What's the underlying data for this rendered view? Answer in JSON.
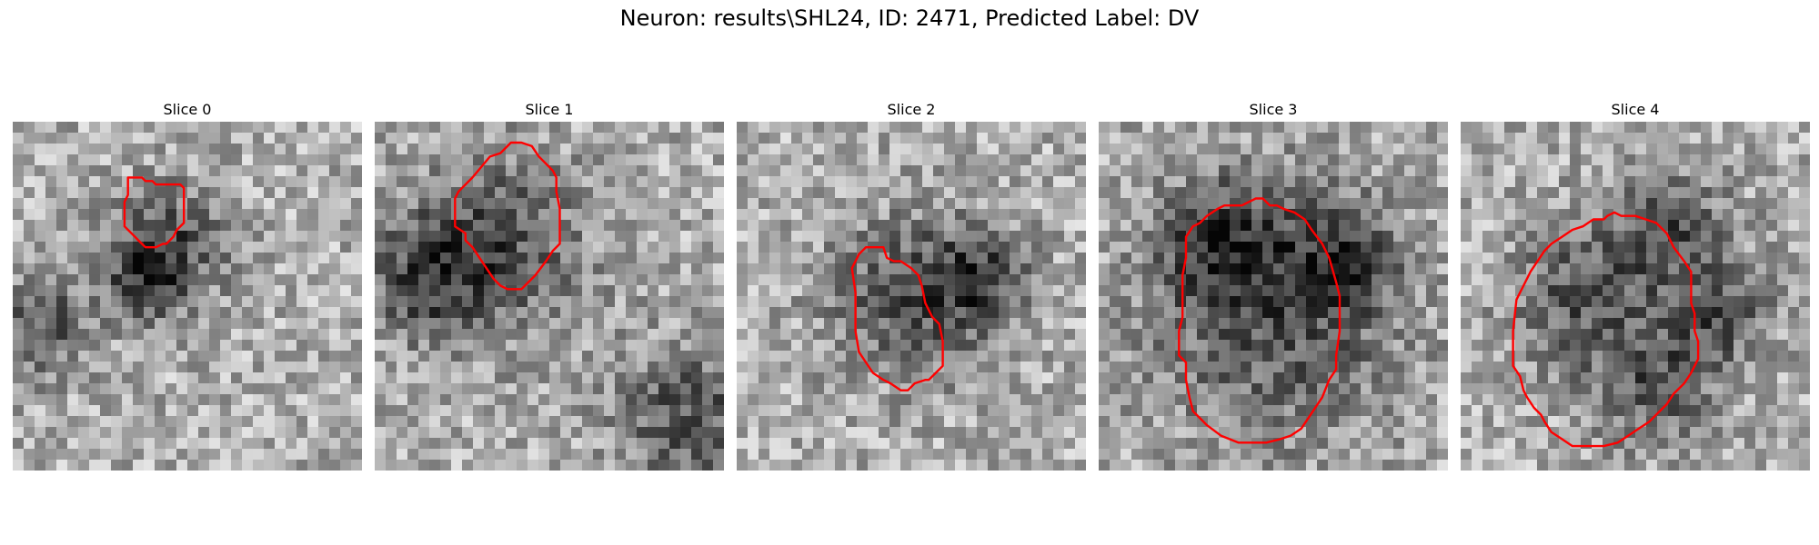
{
  "figure": {
    "title": "Neuron: results\\SHL24, ID: 2471, Predicted Label: DV"
  },
  "panels": [
    {
      "title": "Slice 0",
      "seed": 11,
      "dark": [
        [
          0.45,
          0.35,
          0.12
        ],
        [
          0.38,
          0.45,
          0.08
        ],
        [
          0.08,
          0.58,
          0.1
        ]
      ],
      "contour": [
        [
          0.33,
          0.16
        ],
        [
          0.37,
          0.16
        ],
        [
          0.38,
          0.17
        ],
        [
          0.4,
          0.17
        ],
        [
          0.41,
          0.18
        ],
        [
          0.43,
          0.18
        ],
        [
          0.48,
          0.18
        ],
        [
          0.49,
          0.19
        ],
        [
          0.49,
          0.29
        ],
        [
          0.47,
          0.31
        ],
        [
          0.46,
          0.33
        ],
        [
          0.45,
          0.34
        ],
        [
          0.44,
          0.35
        ],
        [
          0.43,
          0.35
        ],
        [
          0.41,
          0.36
        ],
        [
          0.38,
          0.36
        ],
        [
          0.36,
          0.34
        ],
        [
          0.35,
          0.33
        ],
        [
          0.33,
          0.31
        ],
        [
          0.32,
          0.3
        ],
        [
          0.32,
          0.23
        ],
        [
          0.33,
          0.21
        ],
        [
          0.33,
          0.19
        ]
      ]
    },
    {
      "title": "Slice 1",
      "seed": 23,
      "dark": [
        [
          0.35,
          0.35,
          0.18
        ],
        [
          0.15,
          0.45,
          0.12
        ],
        [
          0.9,
          0.85,
          0.15
        ]
      ],
      "contour": [
        [
          0.28,
          0.16
        ],
        [
          0.33,
          0.1
        ],
        [
          0.36,
          0.09
        ],
        [
          0.39,
          0.06
        ],
        [
          0.42,
          0.06
        ],
        [
          0.45,
          0.07
        ],
        [
          0.47,
          0.1
        ],
        [
          0.48,
          0.11
        ],
        [
          0.49,
          0.12
        ],
        [
          0.51,
          0.14
        ],
        [
          0.52,
          0.16
        ],
        [
          0.52,
          0.2
        ],
        [
          0.53,
          0.25
        ],
        [
          0.53,
          0.35
        ],
        [
          0.51,
          0.37
        ],
        [
          0.49,
          0.4
        ],
        [
          0.46,
          0.44
        ],
        [
          0.44,
          0.46
        ],
        [
          0.42,
          0.48
        ],
        [
          0.41,
          0.48
        ],
        [
          0.38,
          0.48
        ],
        [
          0.36,
          0.47
        ],
        [
          0.34,
          0.45
        ],
        [
          0.32,
          0.42
        ],
        [
          0.3,
          0.39
        ],
        [
          0.28,
          0.36
        ],
        [
          0.26,
          0.34
        ],
        [
          0.26,
          0.32
        ],
        [
          0.23,
          0.3
        ],
        [
          0.23,
          0.22
        ],
        [
          0.24,
          0.2
        ]
      ]
    },
    {
      "title": "Slice 2",
      "seed": 37,
      "dark": [
        [
          0.5,
          0.5,
          0.16
        ],
        [
          0.7,
          0.45,
          0.1
        ]
      ],
      "contour": [
        [
          0.34,
          0.4
        ],
        [
          0.35,
          0.38
        ],
        [
          0.37,
          0.36
        ],
        [
          0.39,
          0.36
        ],
        [
          0.42,
          0.36
        ],
        [
          0.43,
          0.39
        ],
        [
          0.45,
          0.4
        ],
        [
          0.47,
          0.4
        ],
        [
          0.5,
          0.42
        ],
        [
          0.52,
          0.44
        ],
        [
          0.53,
          0.47
        ],
        [
          0.54,
          0.52
        ],
        [
          0.56,
          0.56
        ],
        [
          0.58,
          0.58
        ],
        [
          0.59,
          0.63
        ],
        [
          0.59,
          0.7
        ],
        [
          0.57,
          0.72
        ],
        [
          0.55,
          0.74
        ],
        [
          0.54,
          0.74
        ],
        [
          0.51,
          0.75
        ],
        [
          0.49,
          0.77
        ],
        [
          0.47,
          0.77
        ],
        [
          0.44,
          0.75
        ],
        [
          0.42,
          0.74
        ],
        [
          0.39,
          0.72
        ],
        [
          0.37,
          0.69
        ],
        [
          0.35,
          0.66
        ],
        [
          0.34,
          0.6
        ],
        [
          0.34,
          0.49
        ],
        [
          0.33,
          0.42
        ]
      ]
    },
    {
      "title": "Slice 3",
      "seed": 53,
      "dark": [
        [
          0.5,
          0.55,
          0.26
        ],
        [
          0.35,
          0.35,
          0.12
        ],
        [
          0.7,
          0.4,
          0.1
        ]
      ],
      "contour": [
        [
          0.25,
          0.33
        ],
        [
          0.27,
          0.3
        ],
        [
          0.29,
          0.29
        ],
        [
          0.31,
          0.27
        ],
        [
          0.34,
          0.25
        ],
        [
          0.36,
          0.24
        ],
        [
          0.41,
          0.24
        ],
        [
          0.43,
          0.23
        ],
        [
          0.45,
          0.22
        ],
        [
          0.47,
          0.22
        ],
        [
          0.49,
          0.24
        ],
        [
          0.51,
          0.24
        ],
        [
          0.53,
          0.25
        ],
        [
          0.56,
          0.26
        ],
        [
          0.59,
          0.28
        ],
        [
          0.61,
          0.31
        ],
        [
          0.64,
          0.35
        ],
        [
          0.66,
          0.39
        ],
        [
          0.68,
          0.46
        ],
        [
          0.69,
          0.5
        ],
        [
          0.69,
          0.6
        ],
        [
          0.68,
          0.67
        ],
        [
          0.68,
          0.71
        ],
        [
          0.66,
          0.74
        ],
        [
          0.64,
          0.79
        ],
        [
          0.62,
          0.82
        ],
        [
          0.6,
          0.85
        ],
        [
          0.58,
          0.88
        ],
        [
          0.55,
          0.9
        ],
        [
          0.52,
          0.91
        ],
        [
          0.48,
          0.92
        ],
        [
          0.4,
          0.92
        ],
        [
          0.35,
          0.9
        ],
        [
          0.31,
          0.87
        ],
        [
          0.29,
          0.85
        ],
        [
          0.27,
          0.83
        ],
        [
          0.26,
          0.79
        ],
        [
          0.25,
          0.74
        ],
        [
          0.25,
          0.69
        ],
        [
          0.23,
          0.67
        ],
        [
          0.23,
          0.6
        ],
        [
          0.24,
          0.56
        ],
        [
          0.24,
          0.44
        ],
        [
          0.25,
          0.39
        ]
      ]
    },
    {
      "title": "Slice 4",
      "seed": 71,
      "dark": [
        [
          0.35,
          0.5,
          0.14
        ],
        [
          0.6,
          0.3,
          0.12
        ],
        [
          0.75,
          0.55,
          0.1
        ],
        [
          0.55,
          0.75,
          0.12
        ]
      ],
      "contour": [
        [
          0.35,
          0.3
        ],
        [
          0.38,
          0.28
        ],
        [
          0.41,
          0.28
        ],
        [
          0.42,
          0.27
        ],
        [
          0.44,
          0.26
        ],
        [
          0.46,
          0.27
        ],
        [
          0.5,
          0.27
        ],
        [
          0.53,
          0.28
        ],
        [
          0.56,
          0.29
        ],
        [
          0.59,
          0.32
        ],
        [
          0.61,
          0.36
        ],
        [
          0.64,
          0.4
        ],
        [
          0.66,
          0.43
        ],
        [
          0.66,
          0.52
        ],
        [
          0.67,
          0.55
        ],
        [
          0.67,
          0.6
        ],
        [
          0.68,
          0.63
        ],
        [
          0.68,
          0.68
        ],
        [
          0.66,
          0.72
        ],
        [
          0.64,
          0.75
        ],
        [
          0.61,
          0.78
        ],
        [
          0.59,
          0.81
        ],
        [
          0.57,
          0.83
        ],
        [
          0.54,
          0.86
        ],
        [
          0.51,
          0.88
        ],
        [
          0.48,
          0.9
        ],
        [
          0.45,
          0.92
        ],
        [
          0.41,
          0.93
        ],
        [
          0.32,
          0.93
        ],
        [
          0.29,
          0.91
        ],
        [
          0.26,
          0.89
        ],
        [
          0.24,
          0.86
        ],
        [
          0.23,
          0.84
        ],
        [
          0.21,
          0.82
        ],
        [
          0.19,
          0.79
        ],
        [
          0.18,
          0.77
        ],
        [
          0.17,
          0.73
        ],
        [
          0.15,
          0.7
        ],
        [
          0.15,
          0.6
        ],
        [
          0.16,
          0.51
        ],
        [
          0.18,
          0.47
        ],
        [
          0.2,
          0.43
        ],
        [
          0.22,
          0.4
        ],
        [
          0.24,
          0.37
        ],
        [
          0.26,
          0.35
        ],
        [
          0.29,
          0.33
        ],
        [
          0.32,
          0.31
        ]
      ]
    }
  ]
}
